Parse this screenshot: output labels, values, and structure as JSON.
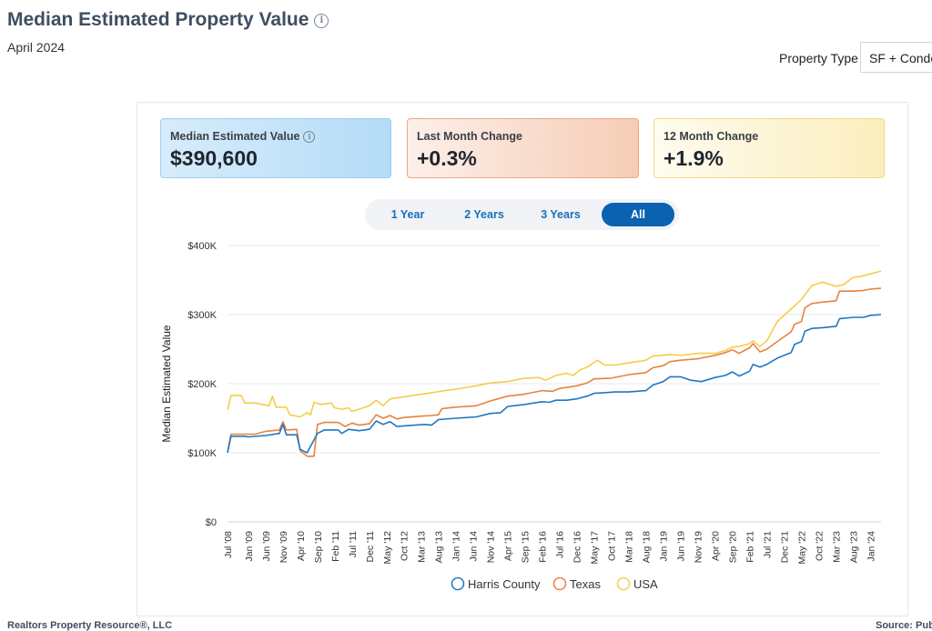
{
  "header": {
    "title": "Median Estimated Property Value",
    "info_icon": "i",
    "date": "April 2024",
    "property_type_label": "Property Type",
    "property_type_value": "SF + Condo"
  },
  "cards": [
    {
      "label": "Median Estimated Value",
      "value": "$390,600",
      "info_icon": "i"
    },
    {
      "label": "Last Month Change",
      "value": "+0.3%"
    },
    {
      "label": "12 Month Change",
      "value": "+1.9%"
    }
  ],
  "ranges": [
    "1 Year",
    "2 Years",
    "3 Years",
    "All"
  ],
  "active_range": "All",
  "footer": {
    "left": "Realtors Property Resource®, LLC",
    "right": "Source: Publ"
  },
  "chart_data": {
    "type": "line",
    "ylabel": "Median Estimated Value",
    "xlabel": "",
    "ylim": [
      0,
      400000
    ],
    "yticks": [
      0,
      100000,
      200000,
      300000,
      400000
    ],
    "ytick_labels": [
      "$0",
      "$100K",
      "$200K",
      "$300K",
      "$400K"
    ],
    "xtick_labels": [
      "Jul '08",
      "Jan '09",
      "Jun '09",
      "Nov '09",
      "Apr '10",
      "Sep '10",
      "Feb '11",
      "Jul '11",
      "Dec '11",
      "May '12",
      "Oct '12",
      "Mar '13",
      "Aug '13",
      "Jan '14",
      "Jun '14",
      "Nov '14",
      "Apr '15",
      "Sep '15",
      "Feb '16",
      "Jul '16",
      "Dec '16",
      "May '17",
      "Oct '17",
      "Mar '18",
      "Aug '18",
      "Jan '19",
      "Jun '19",
      "Nov '19",
      "Apr '20",
      "Sep '20",
      "Feb '21",
      "Jul '21",
      "Dec '21",
      "May '22",
      "Oct '22",
      "Mar '23",
      "Aug '23",
      "Jan '24"
    ],
    "grid": true,
    "legend_position": "bottom",
    "series": [
      {
        "name": "Harris County",
        "color": "#1f77c4",
        "points": [
          [
            "2008-07",
            100000
          ],
          [
            "2008-08",
            124000
          ],
          [
            "2008-12",
            124000
          ],
          [
            "2009-01",
            123000
          ],
          [
            "2009-06",
            125000
          ],
          [
            "2009-10",
            128000
          ],
          [
            "2009-11",
            141000
          ],
          [
            "2009-12",
            126000
          ],
          [
            "2010-03",
            126000
          ],
          [
            "2010-04",
            105000
          ],
          [
            "2010-06",
            100000
          ],
          [
            "2010-09",
            128000
          ],
          [
            "2010-11",
            133000
          ],
          [
            "2011-03",
            133000
          ],
          [
            "2011-04",
            128000
          ],
          [
            "2011-06",
            134000
          ],
          [
            "2011-09",
            132000
          ],
          [
            "2011-12",
            134000
          ],
          [
            "2012-02",
            146000
          ],
          [
            "2012-04",
            141000
          ],
          [
            "2012-06",
            145000
          ],
          [
            "2012-08",
            138000
          ],
          [
            "2012-10",
            139000
          ],
          [
            "2013-04",
            141000
          ],
          [
            "2013-06",
            140000
          ],
          [
            "2013-08",
            148000
          ],
          [
            "2014-01",
            150000
          ],
          [
            "2014-07",
            152000
          ],
          [
            "2014-11",
            157000
          ],
          [
            "2015-02",
            158000
          ],
          [
            "2015-04",
            167000
          ],
          [
            "2015-09",
            170000
          ],
          [
            "2016-02",
            174000
          ],
          [
            "2016-04",
            173000
          ],
          [
            "2016-06",
            176000
          ],
          [
            "2016-09",
            176000
          ],
          [
            "2016-12",
            178000
          ],
          [
            "2017-03",
            182000
          ],
          [
            "2017-05",
            186000
          ],
          [
            "2017-08",
            187000
          ],
          [
            "2017-11",
            188000
          ],
          [
            "2018-03",
            188000
          ],
          [
            "2018-08",
            190000
          ],
          [
            "2018-10",
            198000
          ],
          [
            "2019-01",
            203000
          ],
          [
            "2019-03",
            210000
          ],
          [
            "2019-06",
            210000
          ],
          [
            "2019-09",
            205000
          ],
          [
            "2019-12",
            203000
          ],
          [
            "2020-04",
            209000
          ],
          [
            "2020-07",
            212000
          ],
          [
            "2020-09",
            217000
          ],
          [
            "2020-11",
            211000
          ],
          [
            "2021-02",
            218000
          ],
          [
            "2021-03",
            228000
          ],
          [
            "2021-05",
            224000
          ],
          [
            "2021-07",
            228000
          ],
          [
            "2021-10",
            237000
          ],
          [
            "2022-02",
            245000
          ],
          [
            "2022-03",
            257000
          ],
          [
            "2022-05",
            261000
          ],
          [
            "2022-06",
            276000
          ],
          [
            "2022-08",
            280000
          ],
          [
            "2022-11",
            281000
          ],
          [
            "2023-03",
            283000
          ],
          [
            "2023-04",
            294000
          ],
          [
            "2023-08",
            296000
          ],
          [
            "2023-11",
            296000
          ],
          [
            "2024-01",
            299000
          ],
          [
            "2024-04",
            300000
          ]
        ]
      },
      {
        "name": "Texas",
        "color": "#e8823f",
        "points": [
          [
            "2008-07",
            101000
          ],
          [
            "2008-08",
            127000
          ],
          [
            "2008-12",
            127000
          ],
          [
            "2009-03",
            127000
          ],
          [
            "2009-06",
            131000
          ],
          [
            "2009-10",
            133000
          ],
          [
            "2009-11",
            145000
          ],
          [
            "2009-12",
            133000
          ],
          [
            "2010-03",
            134000
          ],
          [
            "2010-04",
            103000
          ],
          [
            "2010-06",
            95000
          ],
          [
            "2010-08",
            95000
          ],
          [
            "2010-09",
            141000
          ],
          [
            "2010-11",
            144000
          ],
          [
            "2011-03",
            144000
          ],
          [
            "2011-05",
            138000
          ],
          [
            "2011-07",
            143000
          ],
          [
            "2011-09",
            140000
          ],
          [
            "2011-12",
            142000
          ],
          [
            "2012-02",
            155000
          ],
          [
            "2012-04",
            150000
          ],
          [
            "2012-06",
            154000
          ],
          [
            "2012-08",
            149000
          ],
          [
            "2012-10",
            151000
          ],
          [
            "2013-03",
            153000
          ],
          [
            "2013-06",
            154000
          ],
          [
            "2013-08",
            155000
          ],
          [
            "2013-09",
            164000
          ],
          [
            "2014-01",
            166000
          ],
          [
            "2014-07",
            168000
          ],
          [
            "2014-11",
            175000
          ],
          [
            "2015-04",
            182000
          ],
          [
            "2015-09",
            185000
          ],
          [
            "2016-02",
            190000
          ],
          [
            "2016-05",
            189000
          ],
          [
            "2016-07",
            193000
          ],
          [
            "2016-12",
            197000
          ],
          [
            "2017-03",
            201000
          ],
          [
            "2017-05",
            207000
          ],
          [
            "2017-10",
            208000
          ],
          [
            "2018-03",
            213000
          ],
          [
            "2018-08",
            216000
          ],
          [
            "2018-10",
            223000
          ],
          [
            "2019-01",
            226000
          ],
          [
            "2019-03",
            232000
          ],
          [
            "2019-06",
            234000
          ],
          [
            "2019-11",
            236000
          ],
          [
            "2020-04",
            241000
          ],
          [
            "2020-07",
            245000
          ],
          [
            "2020-09",
            249000
          ],
          [
            "2020-11",
            244000
          ],
          [
            "2021-02",
            252000
          ],
          [
            "2021-03",
            258000
          ],
          [
            "2021-05",
            246000
          ],
          [
            "2021-07",
            250000
          ],
          [
            "2021-10",
            261000
          ],
          [
            "2022-02",
            275000
          ],
          [
            "2022-03",
            286000
          ],
          [
            "2022-05",
            290000
          ],
          [
            "2022-06",
            310000
          ],
          [
            "2022-08",
            316000
          ],
          [
            "2022-11",
            318000
          ],
          [
            "2023-03",
            320000
          ],
          [
            "2023-04",
            334000
          ],
          [
            "2023-08",
            334000
          ],
          [
            "2023-11",
            335000
          ],
          [
            "2024-01",
            337000
          ],
          [
            "2024-04",
            338000
          ]
        ]
      },
      {
        "name": "USA",
        "color": "#f5cd4a",
        "points": [
          [
            "2008-07",
            162000
          ],
          [
            "2008-08",
            183000
          ],
          [
            "2008-11",
            183000
          ],
          [
            "2008-12",
            172000
          ],
          [
            "2009-03",
            172000
          ],
          [
            "2009-07",
            168000
          ],
          [
            "2009-08",
            182000
          ],
          [
            "2009-09",
            166000
          ],
          [
            "2009-12",
            166000
          ],
          [
            "2010-01",
            155000
          ],
          [
            "2010-04",
            152000
          ],
          [
            "2010-06",
            158000
          ],
          [
            "2010-07",
            155000
          ],
          [
            "2010-08",
            173000
          ],
          [
            "2010-10",
            170000
          ],
          [
            "2011-01",
            172000
          ],
          [
            "2011-02",
            165000
          ],
          [
            "2011-04",
            163000
          ],
          [
            "2011-06",
            165000
          ],
          [
            "2011-07",
            160000
          ],
          [
            "2011-09",
            163000
          ],
          [
            "2011-12",
            168000
          ],
          [
            "2012-02",
            176000
          ],
          [
            "2012-04",
            168000
          ],
          [
            "2012-06",
            178000
          ],
          [
            "2012-10",
            181000
          ],
          [
            "2013-06",
            187000
          ],
          [
            "2013-10",
            190000
          ],
          [
            "2014-01",
            192000
          ],
          [
            "2014-07",
            197000
          ],
          [
            "2014-11",
            201000
          ],
          [
            "2015-04",
            203000
          ],
          [
            "2015-09",
            208000
          ],
          [
            "2016-01",
            209000
          ],
          [
            "2016-03",
            205000
          ],
          [
            "2016-06",
            212000
          ],
          [
            "2016-09",
            215000
          ],
          [
            "2016-11",
            212000
          ],
          [
            "2017-01",
            220000
          ],
          [
            "2017-03",
            224000
          ],
          [
            "2017-06",
            234000
          ],
          [
            "2017-08",
            227000
          ],
          [
            "2017-11",
            227000
          ],
          [
            "2018-03",
            230000
          ],
          [
            "2018-08",
            234000
          ],
          [
            "2018-10",
            240000
          ],
          [
            "2019-03",
            242000
          ],
          [
            "2019-06",
            241000
          ],
          [
            "2019-11",
            244000
          ],
          [
            "2020-04",
            244000
          ],
          [
            "2020-07",
            248000
          ],
          [
            "2020-09",
            253000
          ],
          [
            "2020-11",
            254000
          ],
          [
            "2021-02",
            258000
          ],
          [
            "2021-03",
            262000
          ],
          [
            "2021-05",
            254000
          ],
          [
            "2021-07",
            262000
          ],
          [
            "2021-10",
            290000
          ],
          [
            "2022-02",
            308000
          ],
          [
            "2022-05",
            322000
          ],
          [
            "2022-08",
            342000
          ],
          [
            "2022-11",
            347000
          ],
          [
            "2023-03",
            341000
          ],
          [
            "2023-05",
            343000
          ],
          [
            "2023-08",
            354000
          ],
          [
            "2023-10",
            355000
          ],
          [
            "2024-01",
            359000
          ],
          [
            "2024-04",
            363000
          ]
        ]
      }
    ]
  }
}
